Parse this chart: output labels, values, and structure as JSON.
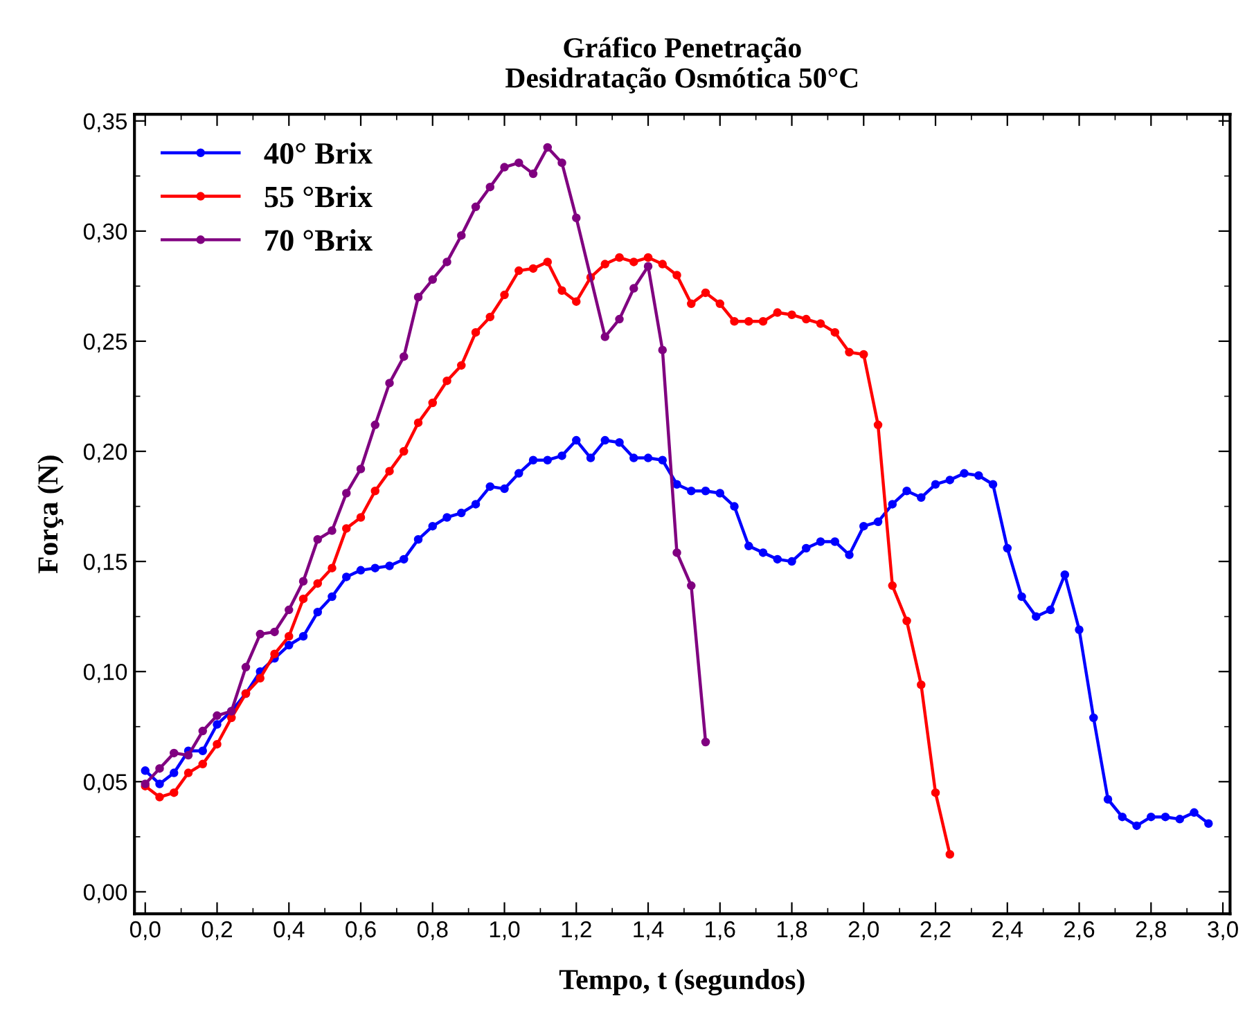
{
  "chart_data": {
    "type": "line",
    "title": "Gráfico Penetração\nDesidratação Osmótica 50°C",
    "xlabel": "Tempo, t (segundos)",
    "ylabel": "Força (N)",
    "xlim": [
      -0.03,
      3.02
    ],
    "ylim": [
      -0.01,
      0.353
    ],
    "xticks": [
      {
        "value": 0.0,
        "label": "0,0"
      },
      {
        "value": 0.2,
        "label": "0,2"
      },
      {
        "value": 0.4,
        "label": "0,4"
      },
      {
        "value": 0.6,
        "label": "0,6"
      },
      {
        "value": 0.8,
        "label": "0,8"
      },
      {
        "value": 1.0,
        "label": "1,0"
      },
      {
        "value": 1.2,
        "label": "1,2"
      },
      {
        "value": 1.4,
        "label": "1,4"
      },
      {
        "value": 1.6,
        "label": "1,6"
      },
      {
        "value": 1.8,
        "label": "1,8"
      },
      {
        "value": 2.0,
        "label": "2,0"
      },
      {
        "value": 2.2,
        "label": "2,2"
      },
      {
        "value": 2.4,
        "label": "2,4"
      },
      {
        "value": 2.6,
        "label": "2,6"
      },
      {
        "value": 2.8,
        "label": "2,8"
      },
      {
        "value": 3.0,
        "label": "3,0"
      }
    ],
    "yticks": [
      {
        "value": 0.0,
        "label": "0,00"
      },
      {
        "value": 0.05,
        "label": "0,05"
      },
      {
        "value": 0.1,
        "label": "0,10"
      },
      {
        "value": 0.15,
        "label": "0,15"
      },
      {
        "value": 0.2,
        "label": "0,20"
      },
      {
        "value": 0.25,
        "label": "0,25"
      },
      {
        "value": 0.3,
        "label": "0,30"
      },
      {
        "value": 0.35,
        "label": "0,35"
      }
    ],
    "grid": false,
    "legend": "top left",
    "marker": "circle",
    "line_style": "solid",
    "series": [
      {
        "name": "40° Brix",
        "color": "#0000ff",
        "x": [
          0.0,
          0.04,
          0.08,
          0.12,
          0.16,
          0.2,
          0.24,
          0.28,
          0.32,
          0.36,
          0.4,
          0.44,
          0.48,
          0.52,
          0.56,
          0.6,
          0.64,
          0.68,
          0.72,
          0.76,
          0.8,
          0.84,
          0.88,
          0.92,
          0.96,
          1.0,
          1.04,
          1.08,
          1.12,
          1.16,
          1.2,
          1.24,
          1.28,
          1.32,
          1.36,
          1.4,
          1.44,
          1.48,
          1.52,
          1.56,
          1.6,
          1.64,
          1.68,
          1.72,
          1.76,
          1.8,
          1.84,
          1.88,
          1.92,
          1.96,
          2.0,
          2.04,
          2.08,
          2.12,
          2.16,
          2.2,
          2.24,
          2.28,
          2.32,
          2.36,
          2.4,
          2.44,
          2.48,
          2.52,
          2.56,
          2.6,
          2.64,
          2.68,
          2.72,
          2.76,
          2.8,
          2.84,
          2.88,
          2.92,
          2.96
        ],
        "values": [
          0.055,
          0.049,
          0.054,
          0.064,
          0.064,
          0.076,
          0.082,
          0.09,
          0.1,
          0.106,
          0.112,
          0.116,
          0.127,
          0.134,
          0.143,
          0.146,
          0.147,
          0.148,
          0.151,
          0.16,
          0.166,
          0.17,
          0.172,
          0.176,
          0.184,
          0.183,
          0.19,
          0.196,
          0.196,
          0.198,
          0.205,
          0.197,
          0.205,
          0.204,
          0.197,
          0.197,
          0.196,
          0.185,
          0.182,
          0.182,
          0.181,
          0.175,
          0.157,
          0.154,
          0.151,
          0.15,
          0.156,
          0.159,
          0.159,
          0.153,
          0.166,
          0.168,
          0.176,
          0.182,
          0.179,
          0.185,
          0.187,
          0.19,
          0.189,
          0.185,
          0.156,
          0.134,
          0.125,
          0.128,
          0.144,
          0.119,
          0.079,
          0.042,
          0.034,
          0.03,
          0.034,
          0.034,
          0.033,
          0.036,
          0.031
        ]
      },
      {
        "name": "55 °Brix",
        "color": "#ff0000",
        "x": [
          0.0,
          0.04,
          0.08,
          0.12,
          0.16,
          0.2,
          0.24,
          0.28,
          0.32,
          0.36,
          0.4,
          0.44,
          0.48,
          0.52,
          0.56,
          0.6,
          0.64,
          0.68,
          0.72,
          0.76,
          0.8,
          0.84,
          0.88,
          0.92,
          0.96,
          1.0,
          1.04,
          1.08,
          1.12,
          1.16,
          1.2,
          1.24,
          1.28,
          1.32,
          1.36,
          1.4,
          1.44,
          1.48,
          1.52,
          1.56,
          1.6,
          1.64,
          1.68,
          1.72,
          1.76,
          1.8,
          1.84,
          1.88,
          1.92,
          1.96,
          2.0,
          2.04,
          2.08,
          2.12,
          2.16,
          2.2,
          2.24
        ],
        "values": [
          0.048,
          0.043,
          0.045,
          0.054,
          0.058,
          0.067,
          0.079,
          0.09,
          0.097,
          0.108,
          0.116,
          0.133,
          0.14,
          0.147,
          0.165,
          0.17,
          0.182,
          0.191,
          0.2,
          0.213,
          0.222,
          0.232,
          0.239,
          0.254,
          0.261,
          0.271,
          0.282,
          0.283,
          0.286,
          0.273,
          0.268,
          0.279,
          0.285,
          0.288,
          0.286,
          0.288,
          0.285,
          0.28,
          0.267,
          0.272,
          0.267,
          0.259,
          0.259,
          0.259,
          0.263,
          0.262,
          0.26,
          0.258,
          0.254,
          0.245,
          0.244,
          0.212,
          0.139,
          0.123,
          0.094,
          0.045,
          0.017
        ]
      },
      {
        "name": "70 °Brix",
        "color": "#800080",
        "x": [
          0.0,
          0.04,
          0.08,
          0.12,
          0.16,
          0.2,
          0.24,
          0.28,
          0.32,
          0.36,
          0.4,
          0.44,
          0.48,
          0.52,
          0.56,
          0.6,
          0.64,
          0.68,
          0.72,
          0.76,
          0.8,
          0.84,
          0.88,
          0.92,
          0.96,
          1.0,
          1.04,
          1.08,
          1.12,
          1.16,
          1.2,
          1.28,
          1.32,
          1.36,
          1.4,
          1.44,
          1.48,
          1.52,
          1.56
        ],
        "values": [
          0.049,
          0.056,
          0.063,
          0.062,
          0.073,
          0.08,
          0.082,
          0.102,
          0.117,
          0.118,
          0.128,
          0.141,
          0.16,
          0.164,
          0.181,
          0.192,
          0.212,
          0.231,
          0.243,
          0.27,
          0.278,
          0.286,
          0.298,
          0.311,
          0.32,
          0.329,
          0.331,
          0.326,
          0.338,
          0.331,
          0.306,
          0.252,
          0.26,
          0.274,
          0.284,
          0.246,
          0.154,
          0.139,
          0.068
        ]
      }
    ]
  }
}
